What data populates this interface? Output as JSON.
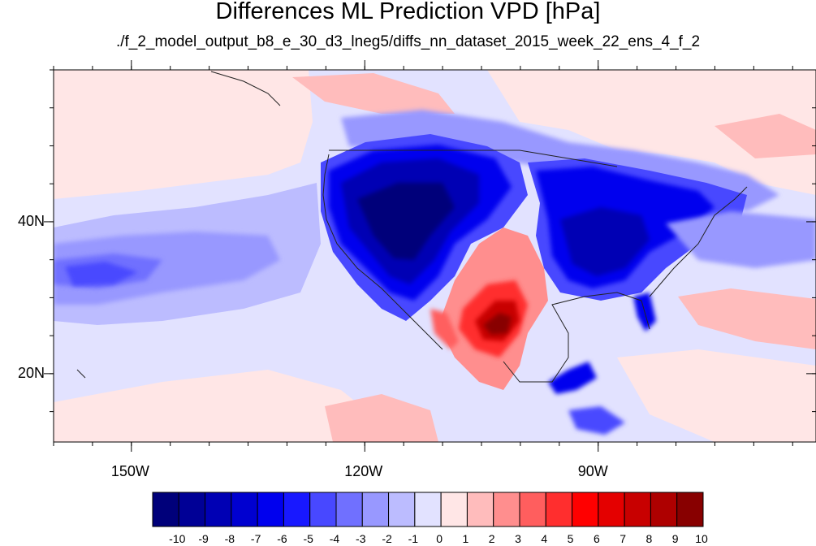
{
  "title": "Differences ML Prediction VPD [hPa]",
  "subtitle": "./f_2_model_output_b8_e_30_d3_lneg5/diffs_nn_dataset_2015_week_22_ens_4_f_2",
  "map": {
    "projection": "equirectangular",
    "lon_range": [
      -160,
      -62
    ],
    "lat_range": [
      11,
      60
    ],
    "lat_ticks": [
      {
        "value": 40,
        "label": "40N"
      },
      {
        "value": 20,
        "label": "20N"
      }
    ],
    "lon_ticks": [
      {
        "value": -150,
        "label": "150W"
      },
      {
        "value": -120,
        "label": "120W"
      },
      {
        "value": -90,
        "label": "90W"
      }
    ]
  },
  "colorbar": {
    "labels": [
      "-10",
      "-9",
      "-8",
      "-7",
      "-6",
      "-5",
      "-4",
      "-3",
      "-2",
      "-1",
      "0",
      "1",
      "2",
      "3",
      "4",
      "5",
      "6",
      "7",
      "8",
      "9",
      "10"
    ],
    "colors": [
      "#00007a",
      "#000096",
      "#0000b4",
      "#0000d0",
      "#0000ee",
      "#1818ff",
      "#4848ff",
      "#7070ff",
      "#9898ff",
      "#bcbcff",
      "#e2e2ff",
      "#ffe6e6",
      "#ffbcbc",
      "#ff8e8e",
      "#ff5e5e",
      "#ff2e2e",
      "#ff0000",
      "#e40000",
      "#c80000",
      "#ae0000",
      "#880000"
    ]
  }
}
